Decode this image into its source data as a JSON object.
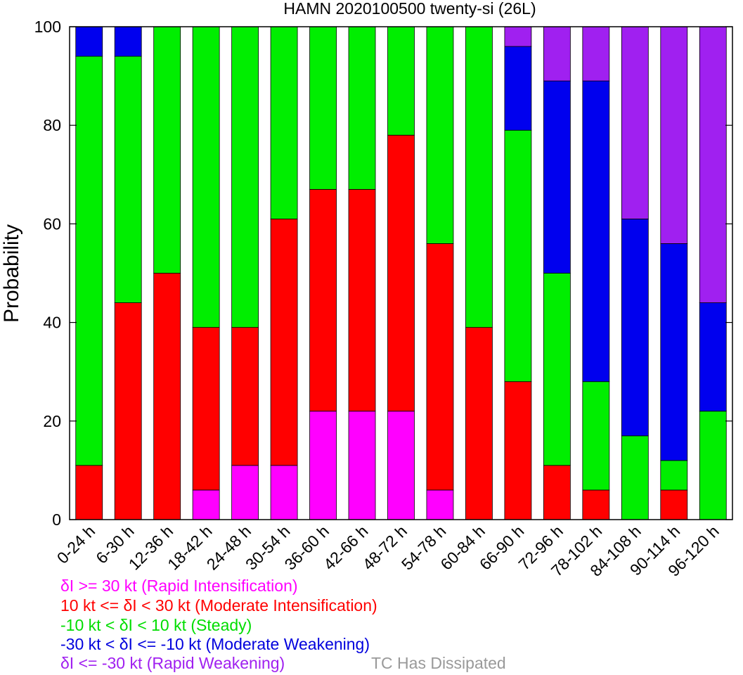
{
  "chart_data": {
    "type": "bar",
    "stacked": true,
    "title": "HAMN 2020100500 twenty-si (26L)",
    "xlabel": "",
    "ylabel": "Probability",
    "ylim": [
      0,
      100
    ],
    "yticks": [
      "0",
      "20",
      "40",
      "60",
      "80",
      "100"
    ],
    "grid": false,
    "categories": [
      "0-24 h",
      "6-30 h",
      "12-36 h",
      "18-42 h",
      "24-48 h",
      "30-54 h",
      "36-60 h",
      "42-66 h",
      "48-72 h",
      "54-78 h",
      "60-84 h",
      "66-90 h",
      "72-96 h",
      "78-102 h",
      "84-108 h",
      "90-114 h",
      "96-120 h"
    ],
    "series": [
      {
        "name": "δI >= 30 kt (Rapid Intensification)",
        "color": "#ff00ff",
        "values": [
          0,
          0,
          0,
          6,
          11,
          11,
          22,
          22,
          22,
          6,
          0,
          0,
          0,
          0,
          0,
          0,
          0
        ]
      },
      {
        "name": "10 kt <= δI < 30 kt (Moderate Intensification)",
        "color": "#ff0000",
        "values": [
          11,
          44,
          50,
          33,
          28,
          50,
          45,
          45,
          56,
          50,
          39,
          28,
          11,
          6,
          0,
          6,
          0
        ]
      },
      {
        "name": "-10 kt < δI < 10 kt (Steady)",
        "color": "#00ee00",
        "values": [
          83,
          50,
          50,
          61,
          61,
          39,
          33,
          33,
          22,
          44,
          61,
          51,
          39,
          22,
          17,
          6,
          22
        ]
      },
      {
        "name": "-30 kt < δI <= -10 kt (Moderate Weakening)",
        "color": "#0000ee",
        "values": [
          6,
          6,
          0,
          0,
          0,
          0,
          0,
          0,
          0,
          0,
          0,
          17,
          39,
          61,
          44,
          44,
          22
        ]
      },
      {
        "name": "δI <= -30 kt (Rapid Weakening)",
        "color": "#a020f0",
        "values": [
          0,
          0,
          0,
          0,
          0,
          0,
          0,
          0,
          0,
          0,
          0,
          4,
          11,
          11,
          39,
          44,
          56
        ]
      }
    ],
    "legend_placement": "bottom-left",
    "extra_legend": {
      "label": "TC Has Dissipated",
      "color": "#999999"
    }
  },
  "legend": {
    "items": [
      {
        "label": "δI >= 30 kt (Rapid Intensification)",
        "color": "#ff00ff"
      },
      {
        "label": "10 kt <= δI < 30 kt (Moderate Intensification)",
        "color": "#ff0000"
      },
      {
        "label": "-10 kt < δI < 10 kt (Steady)",
        "color": "#00dd00"
      },
      {
        "label": "-30 kt < δI <= -10 kt (Moderate Weakening)",
        "color": "#0000dd"
      },
      {
        "label": "δI <= -30 kt (Rapid Weakening)",
        "color": "#a020f0"
      }
    ],
    "dissipated": {
      "label": "TC Has Dissipated",
      "color": "#999999"
    }
  }
}
